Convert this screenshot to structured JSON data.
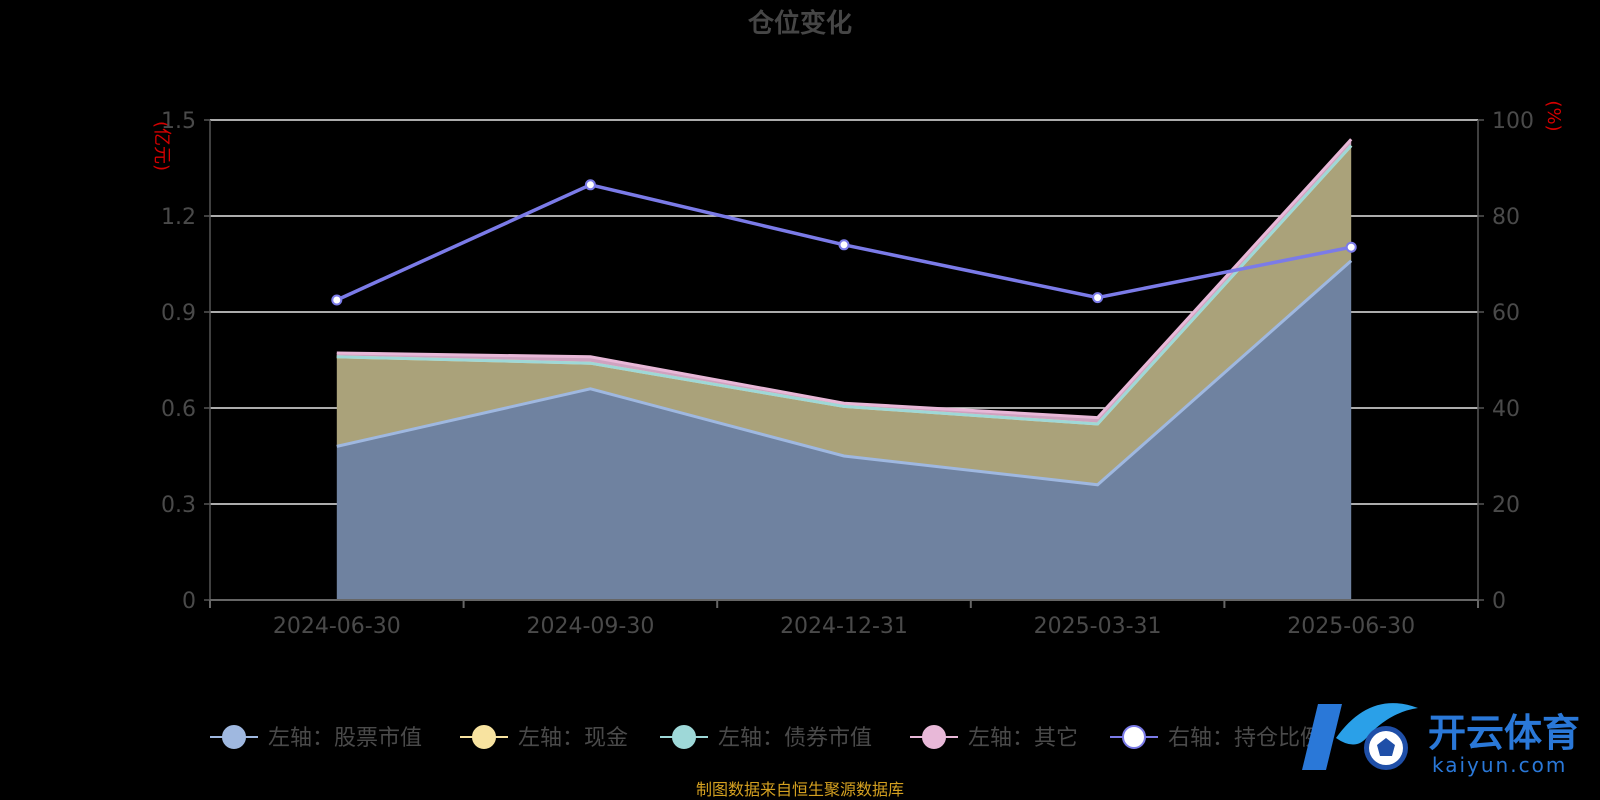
{
  "chart_data": {
    "type": "area",
    "title": "仓位变化",
    "categories": [
      "2024-06-30",
      "2024-09-30",
      "2024-12-31",
      "2025-03-31",
      "2025-06-30"
    ],
    "y_left": {
      "unit": "(亿元)",
      "range": [
        0,
        1.5
      ],
      "ticks": [
        "0",
        "0.3",
        "0.6",
        "0.9",
        "1.2",
        "1.5"
      ],
      "tick_values": [
        0,
        0.3,
        0.6,
        0.9,
        1.2,
        1.5
      ]
    },
    "y_right": {
      "unit": "(%)",
      "range": [
        0,
        100
      ],
      "ticks": [
        "0",
        "20",
        "40",
        "60",
        "80",
        "100"
      ],
      "tick_values": [
        0,
        20,
        40,
        60,
        80,
        100
      ]
    },
    "stacked": true,
    "grid": true,
    "legend_position": "bottom",
    "series": [
      {
        "name": "左轴：股票市值",
        "axis": "left",
        "type": "area",
        "color": "#9fb8e0",
        "values": [
          0.48,
          0.66,
          0.45,
          0.36,
          1.06
        ]
      },
      {
        "name": "左轴：现金",
        "axis": "left",
        "type": "area",
        "color": "#f8e3a0",
        "values": [
          0.28,
          0.08,
          0.155,
          0.19,
          0.36
        ]
      },
      {
        "name": "左轴：债券市值",
        "axis": "left",
        "type": "area",
        "color": "#9ed8d8",
        "values": [
          0,
          0,
          0,
          0,
          0
        ]
      },
      {
        "name": "左轴：其它",
        "axis": "left",
        "type": "area",
        "color": "#e8b8d8",
        "values": [
          0.012,
          0.02,
          0.01,
          0.02,
          0.02
        ]
      },
      {
        "name": "右轴：持仓比例",
        "axis": "right",
        "type": "line",
        "color": "#7b7be8",
        "values": [
          62.5,
          86.5,
          74,
          63,
          73.5
        ]
      }
    ]
  },
  "source": "制图数据来自恒生聚源数据库",
  "watermark": {
    "main": "开云体育",
    "sub": "kaiyun.com"
  }
}
